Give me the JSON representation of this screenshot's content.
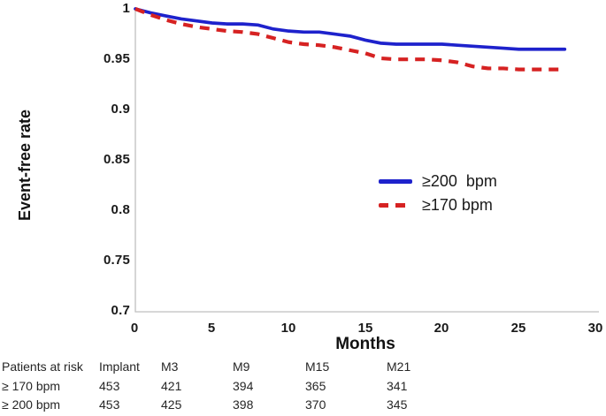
{
  "chart_data": {
    "type": "line",
    "title": "",
    "xlabel": "Months",
    "ylabel": "Event-free rate",
    "xlim": [
      0,
      30
    ],
    "ylim": [
      0.7,
      1.0
    ],
    "grid": false,
    "legend_position": "inside-right",
    "xtick_labels": [
      "0",
      "5",
      "10",
      "15",
      "20",
      "25",
      "30"
    ],
    "ytick_labels": [
      "0.7",
      "0.75",
      "0.8",
      "0.85",
      "0.9",
      "0.95",
      "1"
    ],
    "axis_color": "#bfbfbf",
    "series": [
      {
        "name": "≥200  bpm",
        "color": "#1e22cc",
        "style": "solid",
        "x": [
          0,
          1,
          2,
          3,
          4,
          5,
          6,
          7,
          8,
          9,
          10,
          11,
          12,
          13,
          14,
          15,
          16,
          17,
          18,
          19,
          20,
          21,
          22,
          23,
          24,
          25,
          26,
          27,
          28
        ],
        "y": [
          1.0,
          0.996,
          0.993,
          0.99,
          0.988,
          0.986,
          0.985,
          0.985,
          0.984,
          0.98,
          0.978,
          0.977,
          0.977,
          0.975,
          0.973,
          0.969,
          0.966,
          0.965,
          0.965,
          0.965,
          0.965,
          0.964,
          0.963,
          0.962,
          0.961,
          0.96,
          0.96,
          0.96,
          0.96
        ]
      },
      {
        "name": "≥170 bpm",
        "color": "#d62222",
        "style": "dashed",
        "x": [
          0,
          1,
          2,
          3,
          4,
          5,
          6,
          7,
          8,
          9,
          10,
          11,
          12,
          13,
          14,
          15,
          16,
          17,
          18,
          19,
          20,
          21,
          22,
          23,
          24,
          25,
          26,
          27,
          28
        ],
        "y": [
          1.0,
          0.994,
          0.989,
          0.985,
          0.982,
          0.98,
          0.978,
          0.977,
          0.975,
          0.971,
          0.967,
          0.965,
          0.964,
          0.962,
          0.959,
          0.956,
          0.951,
          0.95,
          0.95,
          0.95,
          0.949,
          0.947,
          0.943,
          0.941,
          0.941,
          0.94,
          0.94,
          0.94,
          0.94
        ]
      }
    ]
  },
  "risk_table": {
    "title": "Patients at risk",
    "columns": [
      "Implant",
      "M3",
      "M9",
      "M15",
      "M21"
    ],
    "rows": [
      {
        "label": "≥ 170 bpm",
        "values": [
          "453",
          "421",
          "394",
          "365",
          "341"
        ]
      },
      {
        "label": "≥ 200 bpm",
        "values": [
          "453",
          "425",
          "398",
          "370",
          "345"
        ]
      }
    ]
  }
}
